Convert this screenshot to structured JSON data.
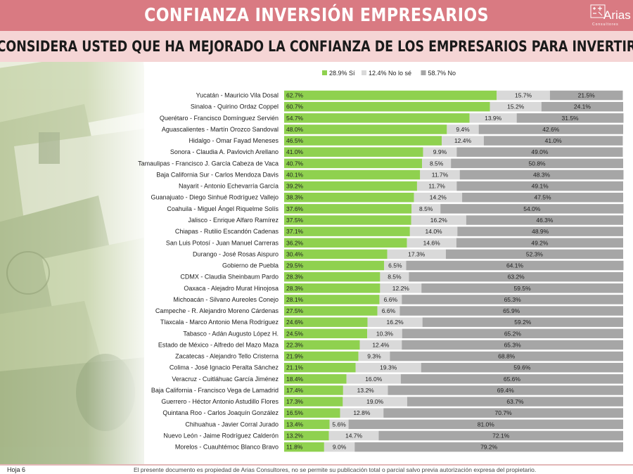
{
  "header": {
    "title": "CONFIANZA INVERSIÓN EMPRESARIOS",
    "logo_text": "Arias",
    "logo_subtext": "Consultores"
  },
  "question": "¿CONSIDERA USTED QUE HA MEJORADO LA CONFIANZA DE LOS EMPRESARIOS PARA INVERTIR?",
  "footer": {
    "page": "Hoja 6",
    "disclaimer": "El presente documento es propiedad de Arias Consultores, no se permite su publicación total o parcial salvo previa autorización expresa del propietario."
  },
  "colors": {
    "header_band": "#d97a82",
    "question_band": "#f5d5d5",
    "si": "#8fd14f",
    "no_se": "#d9d9d9",
    "no": "#a6a6a6"
  },
  "chart_data": {
    "type": "bar",
    "orientation": "horizontal",
    "stacked": true,
    "legend_position": "top",
    "xlim": [
      0,
      100
    ],
    "series": [
      {
        "name": "28.9% Sí",
        "color": "#8fd14f",
        "values": [
          62.7,
          60.7,
          54.7,
          48.0,
          46.5,
          41.0,
          40.7,
          40.1,
          39.2,
          38.3,
          37.6,
          37.5,
          37.1,
          36.2,
          30.4,
          29.5,
          28.3,
          28.3,
          28.1,
          27.5,
          24.6,
          24.5,
          22.3,
          21.9,
          21.1,
          18.4,
          17.4,
          17.3,
          16.5,
          13.4,
          13.2,
          11.8
        ]
      },
      {
        "name": "12.4% No lo sé",
        "color": "#d9d9d9",
        "values": [
          15.7,
          15.2,
          13.9,
          9.4,
          12.4,
          9.9,
          8.5,
          11.7,
          11.7,
          14.2,
          8.5,
          16.2,
          14.0,
          14.6,
          17.3,
          6.5,
          8.5,
          12.2,
          6.6,
          6.6,
          16.2,
          10.3,
          12.4,
          9.3,
          19.3,
          16.0,
          13.2,
          19.0,
          12.8,
          5.6,
          14.7,
          9.0
        ]
      },
      {
        "name": "58.7% No",
        "color": "#a6a6a6",
        "values": [
          21.5,
          24.1,
          31.5,
          42.6,
          41.0,
          49.0,
          50.8,
          48.3,
          49.1,
          47.5,
          54.0,
          46.3,
          48.9,
          49.2,
          52.3,
          64.1,
          63.2,
          59.5,
          65.3,
          65.9,
          59.2,
          65.2,
          65.3,
          68.8,
          59.6,
          65.6,
          69.4,
          63.7,
          70.7,
          81.0,
          72.1,
          79.2
        ]
      }
    ],
    "categories": [
      "Yucatán  - Mauricio Vila Dosal",
      "Sinaloa - Quirino Ordaz Coppel",
      "Querétaro - Francisco Domínguez Servién",
      "Aguascalientes - Martín Orozco Sandoval",
      "Hidalgo - Omar Fayad Meneses",
      "Sonora - Claudia A. Pavlovich Arellano",
      "Tamaulipas - Francisco J. García Cabeza de Vaca",
      "Baja California Sur - Carlos Mendoza Davis",
      "Nayarit - Antonio Echevarría García",
      "Guanajuato - Diego Sinhué Rodríguez Vallejo",
      "Coahuila - Miguel Ángel Riquelme Solís",
      "Jalisco - Enrique Alfaro Ramírez",
      "Chiapas - Rutilio Escandón Cadenas",
      "San Luis Potosí - Juan Manuel Carreras",
      "Durango - José Rosas Aispuro",
      "Gobierno de Puebla",
      "CDMX - Claudia Sheinbaum Pardo",
      "Oaxaca  - Alejadro Murat Hinojosa",
      "Michoacán - Silvano Aureoles Conejo",
      "Campeche - R. Alejandro Moreno Cárdenas",
      "Tlaxcala - Marco Antonio Mena Rodríguez",
      "Tabasco - Adán Augusto López H.",
      "Estado de México - Alfredo del Mazo Maza",
      "Zacatecas - Alejandro Tello Cristerna",
      "Colima - José Ignacio Peralta Sánchez",
      "Veracruz - Cuitláhuac García Jiménez",
      "Baja California - Francisco Vega de Lamadrid",
      "Guerrero - Héctor Antonio Astudillo Flores",
      "Quintana Roo - Carlos Joaquín González",
      "Chihuahua - Javier Corral Jurado",
      "Nuevo León  - Jaime Rodríguez Calderón",
      "Morelos - Cuauhtémoc Blanco Bravo"
    ]
  }
}
